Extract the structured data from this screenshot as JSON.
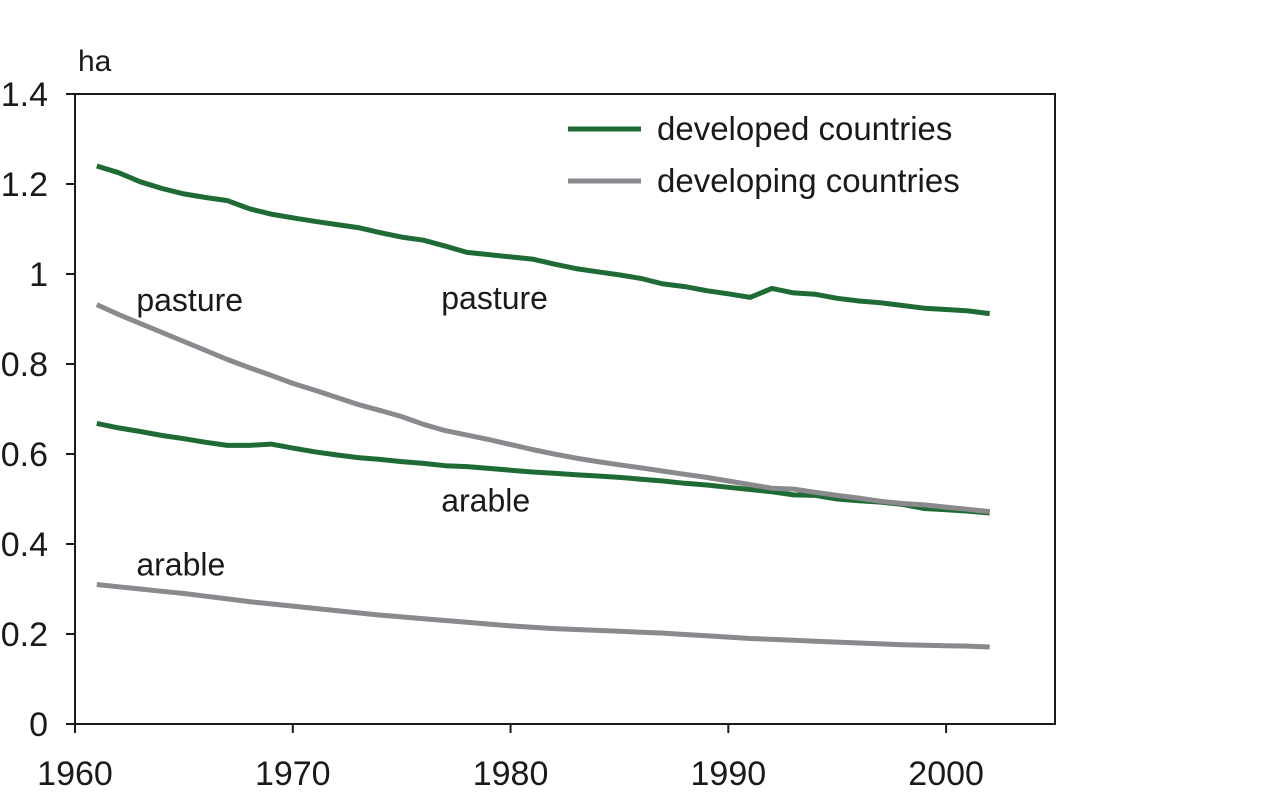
{
  "chart_data": {
    "type": "line",
    "ylabel": "ha",
    "xlim": [
      1960,
      2005
    ],
    "ylim": [
      0,
      1.4
    ],
    "x_ticks": [
      1960,
      1970,
      1980,
      1990,
      2000
    ],
    "y_ticks": [
      0,
      0.2,
      0.4,
      0.6,
      0.8,
      1,
      1.2,
      1.4
    ],
    "y_tick_labels": [
      "0",
      "0.2",
      "0.4",
      "0.6",
      "0.8",
      "1",
      "1.2",
      "1.4"
    ],
    "grid": false,
    "legend": {
      "placement": "top-right",
      "entries": [
        {
          "label": "developed countries",
          "color": "#1e6b35"
        },
        {
          "label": "developing countries",
          "color": "#8a8a8e"
        }
      ]
    },
    "annotations": [
      {
        "text": "pasture",
        "near": "developing pasture",
        "x": 1963,
        "y": 0.94
      },
      {
        "text": "pasture",
        "near": "developed pasture",
        "x": 1977,
        "y": 0.945
      },
      {
        "text": "arable",
        "near": "developed arable",
        "x": 1977,
        "y": 0.495
      },
      {
        "text": "arable",
        "near": "developing arable",
        "x": 1963,
        "y": 0.352
      }
    ],
    "series": [
      {
        "group": "developed countries",
        "color": "#1e6b35",
        "x": [
          1961,
          1962,
          1963,
          1964,
          1965,
          1966,
          1967,
          1968,
          1969,
          1970,
          1971,
          1972,
          1973,
          1974,
          1975,
          1976,
          1977,
          1978,
          1979,
          1980,
          1981,
          1982,
          1983,
          1984,
          1985,
          1986,
          1987,
          1988,
          1989,
          1990,
          1991,
          1992,
          1993,
          1994,
          1995,
          1996,
          1997,
          1998,
          1999,
          2000,
          2001,
          2002
        ],
        "values": [
          1.24,
          1.225,
          1.205,
          1.19,
          1.178,
          1.17,
          1.163,
          1.145,
          1.133,
          1.125,
          1.117,
          1.11,
          1.103,
          1.092,
          1.082,
          1.075,
          1.062,
          1.048,
          1.043,
          1.038,
          1.033,
          1.022,
          1.012,
          1.005,
          0.998,
          0.99,
          0.978,
          0.972,
          0.963,
          0.956,
          0.948,
          0.968,
          0.958,
          0.955,
          0.946,
          0.94,
          0.936,
          0.93,
          0.924,
          0.921,
          0.918,
          0.912
        ]
      },
      {
        "group": "developed countries",
        "color": "#1e6b35",
        "x": [
          1961,
          1962,
          1963,
          1964,
          1965,
          1966,
          1967,
          1968,
          1969,
          1970,
          1971,
          1972,
          1973,
          1974,
          1975,
          1976,
          1977,
          1978,
          1979,
          1980,
          1981,
          1982,
          1983,
          1984,
          1985,
          1986,
          1987,
          1988,
          1989,
          1990,
          1991,
          1992,
          1993,
          1994,
          1995,
          1996,
          1997,
          1998,
          1999,
          2000,
          2001,
          2002
        ],
        "values": [
          0.668,
          0.658,
          0.65,
          0.641,
          0.634,
          0.626,
          0.619,
          0.619,
          0.622,
          0.613,
          0.605,
          0.598,
          0.592,
          0.588,
          0.583,
          0.579,
          0.574,
          0.572,
          0.568,
          0.564,
          0.56,
          0.557,
          0.554,
          0.551,
          0.548,
          0.544,
          0.54,
          0.535,
          0.531,
          0.526,
          0.521,
          0.516,
          0.509,
          0.508,
          0.5,
          0.496,
          0.493,
          0.488,
          0.479,
          0.476,
          0.473,
          0.469
        ]
      },
      {
        "group": "developing countries",
        "color": "#8a8a8e",
        "x": [
          1961,
          1962,
          1963,
          1964,
          1965,
          1966,
          1967,
          1968,
          1969,
          1970,
          1971,
          1972,
          1973,
          1974,
          1975,
          1976,
          1977,
          1978,
          1979,
          1980,
          1981,
          1982,
          1983,
          1984,
          1985,
          1986,
          1987,
          1988,
          1989,
          1990,
          1991,
          1992,
          1993,
          1994,
          1995,
          1996,
          1997,
          1998,
          1999,
          2000,
          2001,
          2002
        ],
        "values": [
          0.932,
          0.91,
          0.89,
          0.87,
          0.85,
          0.83,
          0.81,
          0.792,
          0.775,
          0.757,
          0.742,
          0.726,
          0.71,
          0.697,
          0.683,
          0.666,
          0.652,
          0.642,
          0.632,
          0.621,
          0.61,
          0.6,
          0.591,
          0.583,
          0.576,
          0.569,
          0.562,
          0.555,
          0.548,
          0.54,
          0.532,
          0.524,
          0.522,
          0.515,
          0.508,
          0.502,
          0.495,
          0.49,
          0.487,
          0.482,
          0.477,
          0.472
        ]
      },
      {
        "group": "developing countries",
        "color": "#8a8a8e",
        "x": [
          1961,
          1962,
          1963,
          1964,
          1965,
          1966,
          1967,
          1968,
          1969,
          1970,
          1971,
          1972,
          1973,
          1974,
          1975,
          1976,
          1977,
          1978,
          1979,
          1980,
          1981,
          1982,
          1983,
          1984,
          1985,
          1986,
          1987,
          1988,
          1989,
          1990,
          1991,
          1992,
          1993,
          1994,
          1995,
          1996,
          1997,
          1998,
          1999,
          2000,
          2001,
          2002
        ],
        "values": [
          0.31,
          0.305,
          0.3,
          0.295,
          0.29,
          0.284,
          0.278,
          0.272,
          0.267,
          0.262,
          0.257,
          0.252,
          0.247,
          0.242,
          0.238,
          0.234,
          0.23,
          0.226,
          0.222,
          0.218,
          0.215,
          0.212,
          0.21,
          0.208,
          0.206,
          0.204,
          0.202,
          0.199,
          0.196,
          0.193,
          0.19,
          0.188,
          0.186,
          0.184,
          0.182,
          0.18,
          0.178,
          0.176,
          0.175,
          0.174,
          0.173,
          0.171
        ]
      }
    ]
  }
}
